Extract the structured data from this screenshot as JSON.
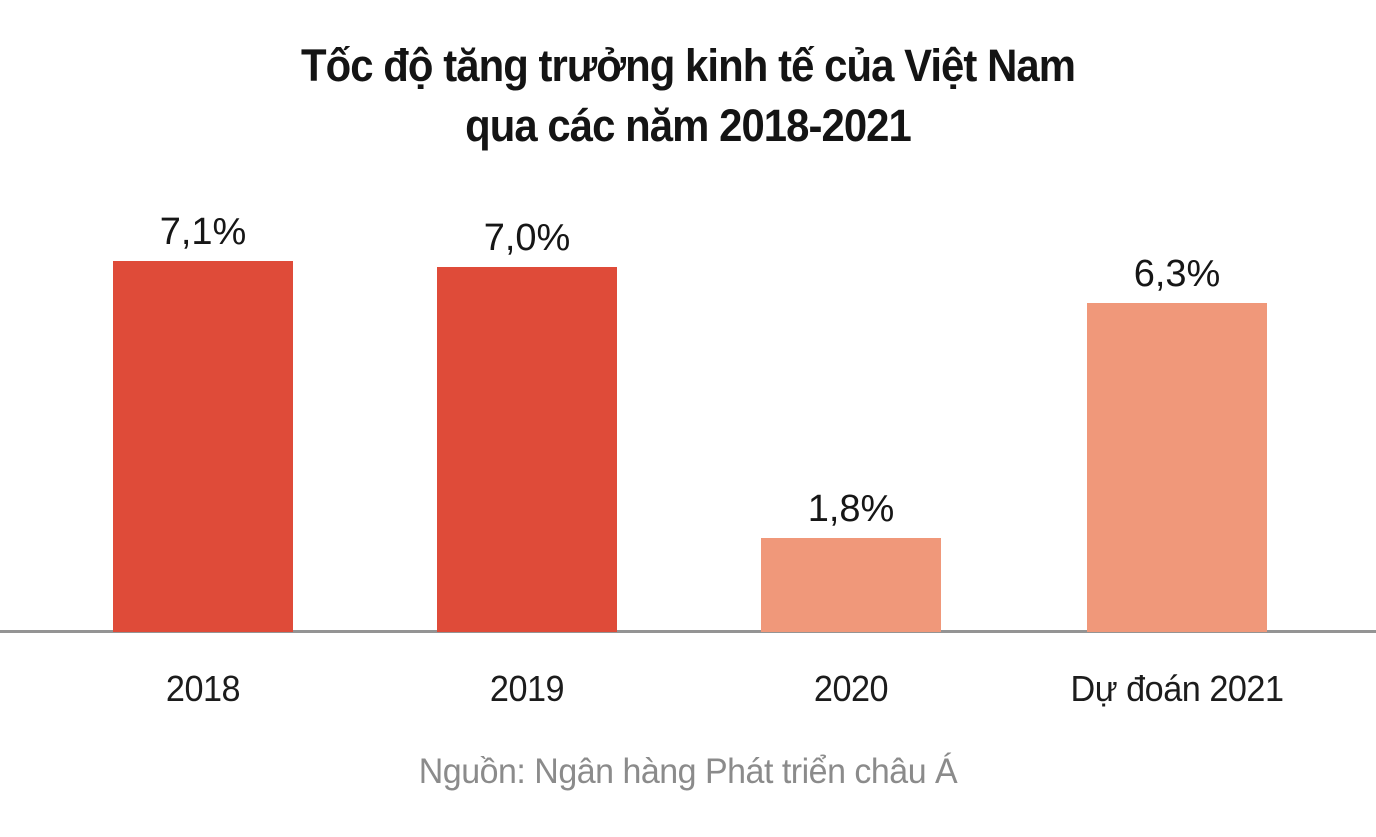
{
  "title": {
    "line1": "Tốc độ tăng trưởng kinh tế của Việt Nam",
    "line2": "qua các năm 2018-2021"
  },
  "source": {
    "text": "Nguồn: Ngân hàng Phát triển châu Á"
  },
  "colors": {
    "bar_dark_red": "#DF4B39",
    "bar_light_salmon": "#F0987A",
    "axis_line": "#949494",
    "title_text": "#141414",
    "source_text": "#8B8B8B",
    "background": "#FFFFFF"
  },
  "chart_data": {
    "type": "bar",
    "title": "Tốc độ tăng trưởng kinh tế của Việt Nam qua các năm 2018-2021",
    "categories": [
      "2018",
      "2019",
      "2020",
      "Dự đoán 2021"
    ],
    "values": [
      7.1,
      7.0,
      1.8,
      6.3
    ],
    "value_labels": [
      "7,1%",
      "7,0%",
      "1,8%",
      "6,3%"
    ],
    "bar_colors": [
      "#DF4B39",
      "#DF4B39",
      "#F0987A",
      "#F0987A"
    ],
    "unit": "%",
    "xlabel": "",
    "ylabel": "",
    "ylim": [
      0,
      7.6
    ],
    "grid": false,
    "legend": false,
    "y_axis_visible": false,
    "x_axis_line_visible": true,
    "source": "Nguồn: Ngân hàng Phát triển châu Á"
  }
}
